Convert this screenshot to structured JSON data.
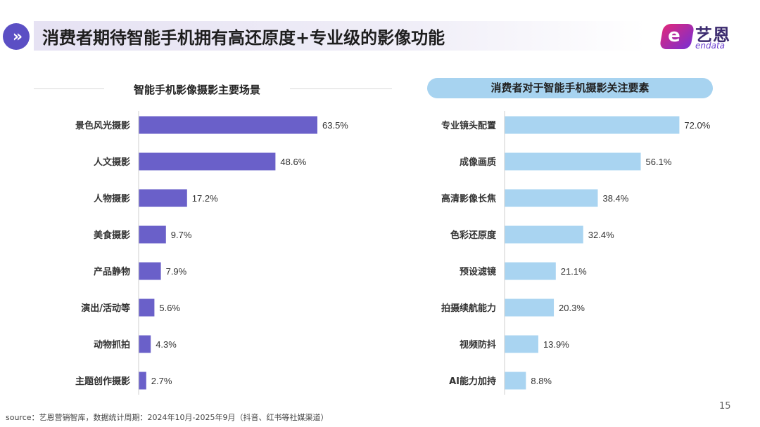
{
  "header": {
    "icon_glyph": "»",
    "title": "消费者期待智能手机拥有高还原度+专业级的影像功能"
  },
  "logo": {
    "mark_letter": "e",
    "name_cn": "艺恩",
    "name_en": "endata"
  },
  "chart_data": [
    {
      "type": "bar",
      "orientation": "horizontal",
      "title": "智能手机影像摄影主要场景",
      "categories": [
        "景色风光摄影",
        "人文摄影",
        "人物摄影",
        "美食摄影",
        "产品静物",
        "演出/活动等",
        "动物抓拍",
        "主题创作摄影"
      ],
      "values": [
        63.5,
        48.6,
        17.2,
        9.7,
        7.9,
        5.6,
        4.3,
        2.7
      ],
      "value_labels": [
        "63.5%",
        "48.6%",
        "17.2%",
        "9.7%",
        "7.9%",
        "5.6%",
        "4.3%",
        "2.7%"
      ],
      "unit": "%",
      "bar_color": "#6a60c9",
      "xlabel": "",
      "ylabel": ""
    },
    {
      "type": "bar",
      "orientation": "horizontal",
      "title": "消费者对于智能手机摄影关注要素",
      "categories": [
        "专业镜头配置",
        "成像画质",
        "高清影像长焦",
        "色彩还原度",
        "预设滤镜",
        "拍摄续航能力",
        "视频防抖",
        "AI能力加持"
      ],
      "values": [
        72.0,
        56.1,
        38.4,
        32.4,
        21.1,
        20.3,
        13.9,
        8.8
      ],
      "value_labels": [
        "72.0%",
        "56.1%",
        "38.4%",
        "32.4%",
        "21.1%",
        "20.3%",
        "13.9%",
        "8.8%"
      ],
      "unit": "%",
      "bar_color": "#a9d4f1",
      "xlabel": "",
      "ylabel": ""
    }
  ],
  "footer": {
    "source": "source：艺恩营销智库，数据统计周期：2024年10月-2025年9月（抖音、红书等社媒渠道）",
    "page_number": "15"
  }
}
